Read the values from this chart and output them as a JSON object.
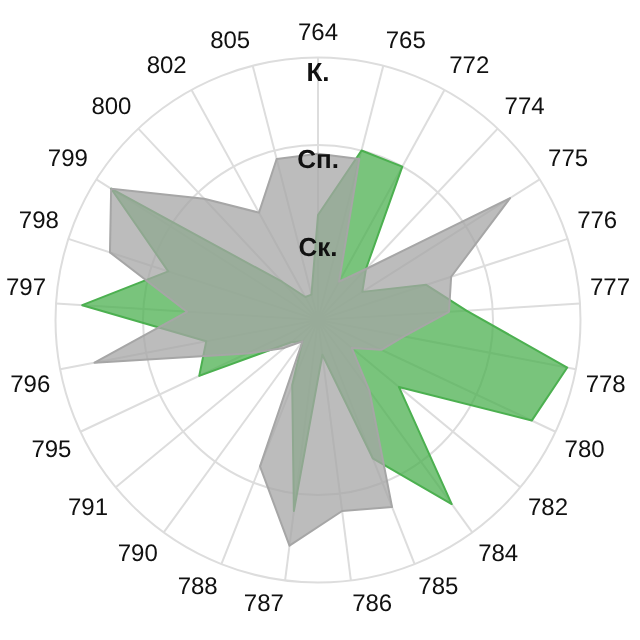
{
  "chart_data": {
    "type": "radar",
    "categories": [
      "764",
      "765",
      "772",
      "774",
      "775",
      "776",
      "777",
      "778",
      "780",
      "782",
      "784",
      "785",
      "786",
      "787",
      "788",
      "790",
      "791",
      "795",
      "796",
      "797",
      "798",
      "799",
      "800",
      "802",
      "805"
    ],
    "ylim": [
      0,
      3
    ],
    "yticks": [
      {
        "value": 1,
        "label": "Ск."
      },
      {
        "value": 2,
        "label": "Сп."
      },
      {
        "value": 3,
        "label": "К."
      }
    ],
    "grid": true,
    "legend": false,
    "marker": "none",
    "series": [
      {
        "color": "#a6a6a6",
        "values": [
          1.9,
          1.9,
          0.5,
          0.8,
          2.6,
          1.6,
          1.5,
          1.0,
          0.8,
          0.5,
          1.0,
          2.3,
          2.2,
          2.6,
          1.8,
          0.3,
          0.5,
          0.9,
          2.6,
          1.5,
          2.5,
          2.8,
          1.9,
          1.4,
          1.9
        ]
      },
      {
        "color": "#4cb050",
        "values": [
          1.2,
          2.0,
          2.0,
          0.8,
          0.6,
          1.3,
          1.7,
          2.9,
          2.7,
          1.2,
          2.6,
          1.7,
          0.4,
          2.2,
          0.8,
          0.3,
          0.4,
          1.5,
          1.3,
          2.7,
          1.8,
          2.8,
          0.6,
          0.3,
          0.3
        ]
      }
    ]
  }
}
